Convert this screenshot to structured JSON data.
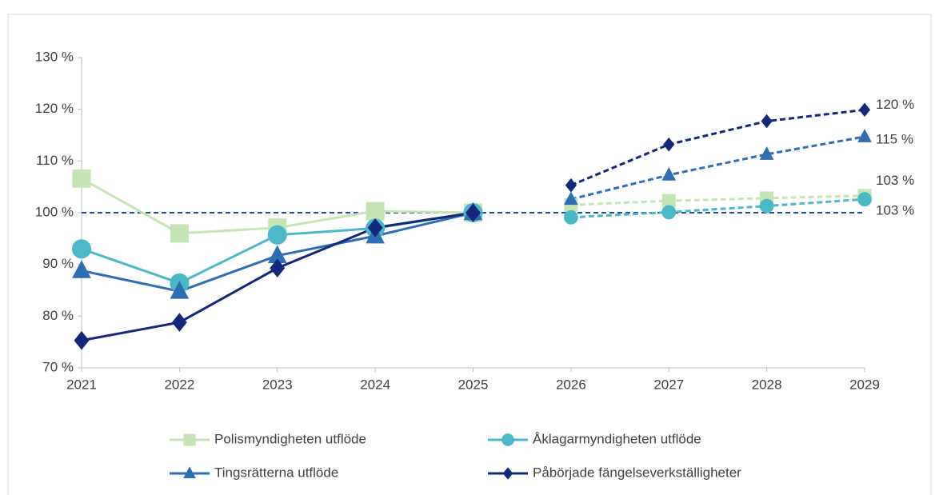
{
  "chart_data": {
    "type": "line",
    "categories": [
      "2021",
      "2022",
      "2023",
      "2024",
      "2025",
      "2026",
      "2027",
      "2028",
      "2029"
    ],
    "forecast_from": "2025",
    "reference_line": 100,
    "reference_color": "#1f4e9a",
    "ylim": [
      70,
      130
    ],
    "yticks": [
      {
        "value": 70,
        "label": "70 %"
      },
      {
        "value": 80,
        "label": "80 %"
      },
      {
        "value": 90,
        "label": "90 %"
      },
      {
        "value": 100,
        "label": "100 %"
      },
      {
        "value": 110,
        "label": "110 %"
      },
      {
        "value": 120,
        "label": "120 %"
      },
      {
        "value": 130,
        "label": "130 %"
      }
    ],
    "series": [
      {
        "name": "Polismyndigheten utflöde",
        "color": "#c6e5b4",
        "marker": "square",
        "values": [
          106.6,
          96.0,
          97.1,
          100.3,
          100,
          101.5,
          102.3,
          102.8,
          103.3
        ],
        "value_labels": [
          null,
          null,
          null,
          null,
          null,
          null,
          null,
          null,
          "103 %"
        ]
      },
      {
        "name": "Åklagarmyndigheten utflöde",
        "color": "#4bb8c9",
        "marker": "circle",
        "values": [
          93.0,
          86.4,
          95.7,
          97.0,
          100,
          99.1,
          100.1,
          101.3,
          102.6
        ],
        "value_labels": [
          null,
          null,
          null,
          null,
          null,
          null,
          null,
          null,
          "103 %"
        ]
      },
      {
        "name": "Tingsrätterna utflöde",
        "color": "#2e6eb3",
        "marker": "triangle",
        "values": [
          88.8,
          84.8,
          91.7,
          95.5,
          100,
          102.6,
          107.3,
          111.3,
          114.7
        ],
        "value_labels": [
          null,
          null,
          null,
          null,
          null,
          null,
          null,
          null,
          "115 %"
        ]
      },
      {
        "name": "Påbörjade fängelseverkställigheter",
        "color": "#13287a",
        "marker": "diamond",
        "values": [
          75.3,
          78.8,
          89.3,
          97.1,
          100,
          105.3,
          113.2,
          117.7,
          119.9
        ],
        "value_labels": [
          null,
          null,
          null,
          null,
          null,
          null,
          null,
          null,
          "120 %"
        ]
      }
    ]
  }
}
